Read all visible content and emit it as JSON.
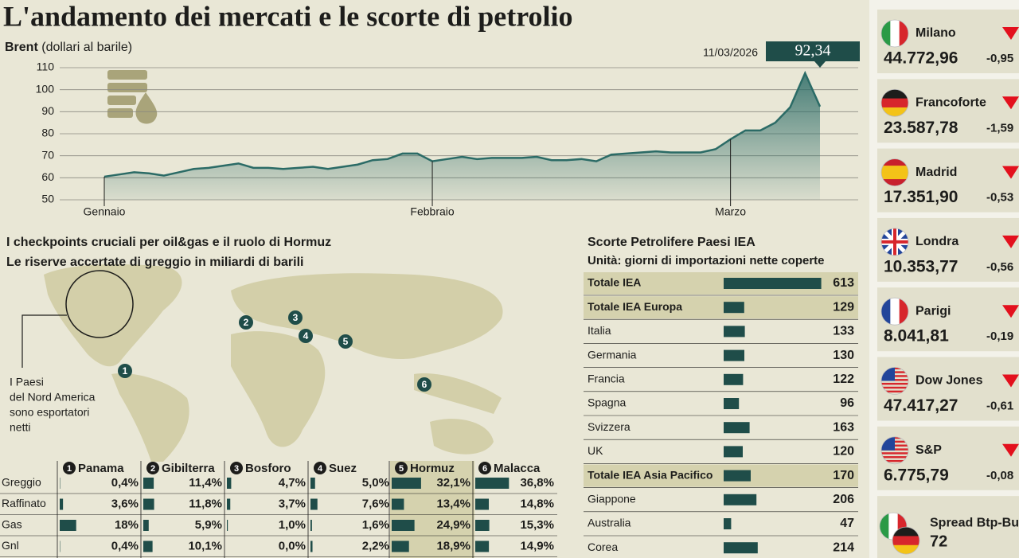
{
  "header": {
    "title": "L'andamento dei mercati e le scorte di petrolio"
  },
  "chart_data": {
    "type": "line",
    "y_label": "Brent",
    "y_unit": "(dollari al barile)",
    "annotation": "11/03/2026",
    "categories": [
      "Gennaio",
      null,
      null,
      null,
      null,
      null,
      null,
      null,
      null,
      null,
      null,
      null,
      null,
      null,
      null,
      null,
      null,
      null,
      null,
      null,
      null,
      null,
      "Febbraio",
      null,
      null,
      null,
      null,
      null,
      null,
      null,
      null,
      null,
      null,
      null,
      null,
      null,
      null,
      null,
      null,
      null,
      null,
      null,
      "Marzo",
      null,
      null,
      null,
      null,
      null,
      null
    ],
    "values": [
      60.5,
      61.5,
      62.5,
      62,
      61,
      62.5,
      64,
      64.5,
      65.5,
      66.5,
      64.5,
      64.5,
      64,
      64.5,
      65,
      64,
      65,
      66,
      68,
      68.5,
      71,
      71,
      67.5,
      68.5,
      69.5,
      68.5,
      69,
      69,
      69,
      69.5,
      68,
      68,
      68.5,
      67.5,
      70.5,
      71,
      71.5,
      72,
      71.5,
      71.5,
      71.5,
      73,
      77.5,
      81.5,
      81.5,
      85,
      92,
      107.5,
      92.34
    ],
    "value_labels": [
      null,
      null,
      null,
      null,
      null,
      null,
      null,
      null,
      null,
      null,
      null,
      null,
      null,
      null,
      null,
      null,
      null,
      null,
      null,
      null,
      null,
      null,
      null,
      null,
      null,
      null,
      null,
      null,
      null,
      null,
      null,
      null,
      null,
      null,
      null,
      null,
      null,
      null,
      null,
      null,
      null,
      null,
      null,
      null,
      null,
      null,
      null,
      null,
      "92,34"
    ],
    "color": "#2b6b66",
    "ylim": [
      50,
      110
    ],
    "yticks": [
      50,
      60,
      70,
      80,
      90,
      100,
      110
    ],
    "grid": true
  },
  "checkpoints": {
    "title": "I checkpoints cruciali per oil&gas e il ruolo di Hormuz",
    "subtitle": "Le riserve accertate di greggio in miliardi di barili",
    "note": [
      "I Paesi",
      "del Nord America",
      "sono esportatori",
      "netti"
    ],
    "columns": [
      {
        "number": "1",
        "name": "Panama"
      },
      {
        "number": "2",
        "name": "Gibilterra"
      },
      {
        "number": "3",
        "name": "Bosforo"
      },
      {
        "number": "4",
        "name": "Suez"
      },
      {
        "number": "5",
        "name": "Hormuz",
        "highlight": true
      },
      {
        "number": "6",
        "name": "Malacca"
      }
    ],
    "rows": [
      {
        "label": "Greggio",
        "cells": [
          {
            "value": 0.4,
            "label": "0,4%"
          },
          {
            "value": 11.4,
            "label": "11,4%"
          },
          {
            "value": 4.7,
            "label": "4,7%"
          },
          {
            "value": 5.0,
            "label": "5,0%"
          },
          {
            "value": 32.1,
            "label": "32,1%"
          },
          {
            "value": 36.8,
            "label": "36,8%"
          }
        ]
      },
      {
        "label": "Raffinato",
        "cells": [
          {
            "value": 3.6,
            "label": "3,6%"
          },
          {
            "value": 11.8,
            "label": "11,8%"
          },
          {
            "value": 3.7,
            "label": "3,7%"
          },
          {
            "value": 7.6,
            "label": "7,6%"
          },
          {
            "value": 13.4,
            "label": "13,4%"
          },
          {
            "value": 14.8,
            "label": "14,8%"
          }
        ]
      },
      {
        "label": "Gas",
        "cells": [
          {
            "value": 18,
            "label": "18%"
          },
          {
            "value": 5.9,
            "label": "5,9%"
          },
          {
            "value": 1.0,
            "label": "1,0%"
          },
          {
            "value": 1.6,
            "label": "1,6%"
          },
          {
            "value": 24.9,
            "label": "24,9%"
          },
          {
            "value": 15.3,
            "label": "15,3%"
          }
        ]
      },
      {
        "label": "Gnl",
        "cells": [
          {
            "value": 0.4,
            "label": "0,4%"
          },
          {
            "value": 10.1,
            "label": "10,1%"
          },
          {
            "value": 0.0,
            "label": "0,0%"
          },
          {
            "value": 2.2,
            "label": "2,2%"
          },
          {
            "value": 18.9,
            "label": "18,9%"
          },
          {
            "value": 14.9,
            "label": "14,9%"
          }
        ]
      }
    ]
  },
  "iea": {
    "title": "Scorte Petrolifere Paesi IEA",
    "subtitle": "Unità: giorni di importazioni nette coperte",
    "rows": [
      {
        "name": "Totale IEA",
        "value": 613,
        "highlight": true
      },
      {
        "name": "Totale IEA Europa",
        "value": 129,
        "highlight": true
      },
      {
        "name": "Italia",
        "value": 133
      },
      {
        "name": "Germania",
        "value": 130
      },
      {
        "name": "Francia",
        "value": 122
      },
      {
        "name": "Spagna",
        "value": 96
      },
      {
        "name": "Svizzera",
        "value": 163
      },
      {
        "name": "UK",
        "value": 120
      },
      {
        "name": "Totale IEA Asia Pacifico",
        "value": 170,
        "highlight": true
      },
      {
        "name": "Giappone",
        "value": 206
      },
      {
        "name": "Australia",
        "value": 47
      },
      {
        "name": "Corea",
        "value": 214
      }
    ]
  },
  "markets": [
    {
      "name": "Milano",
      "value": "44.772,96",
      "change": "-0,95"
    },
    {
      "name": "Francoforte",
      "value": "23.587,78",
      "change": "-1,59"
    },
    {
      "name": "Madrid",
      "value": "17.351,90",
      "change": "-0,53"
    },
    {
      "name": "Londra",
      "value": "10.353,77",
      "change": "-0,56"
    },
    {
      "name": "Parigi",
      "value": "8.041,81",
      "change": "-0,19"
    },
    {
      "name": "Dow Jones",
      "value": "47.417,27",
      "change": "-0,61"
    },
    {
      "name": "S&P",
      "value": "6.775,79",
      "change": "-0,08"
    },
    {
      "name": "Spread Btp-Bu",
      "value": "72"
    }
  ]
}
